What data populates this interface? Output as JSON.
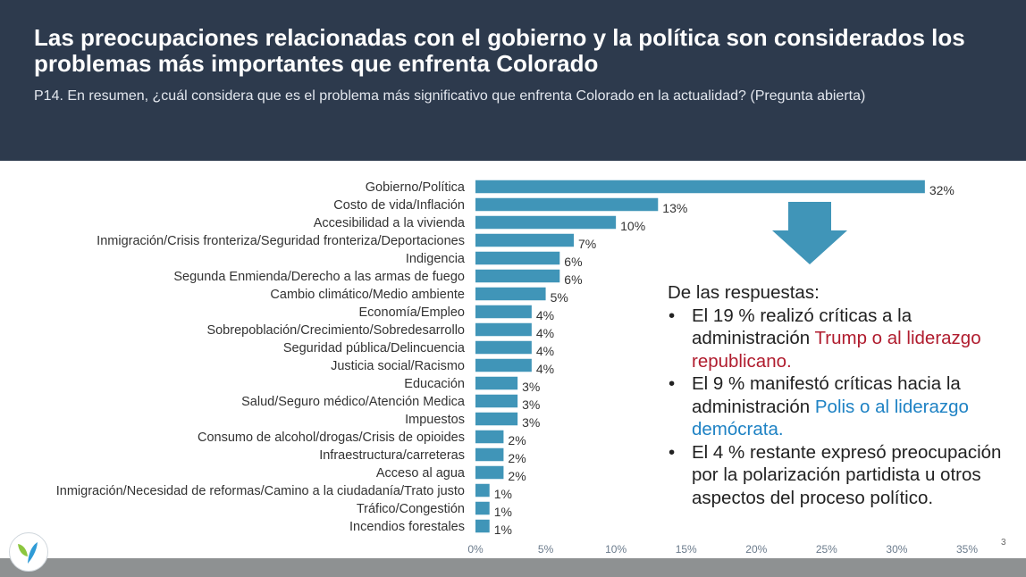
{
  "header": {
    "title": "Las preocupaciones relacionadas con el gobierno y la política son considerados los problemas más importantes que enfrenta Colorado",
    "subtitle": "P14. En resumen, ¿cuál considera que es el problema más significativo que enfrenta Colorado en la actualidad? (Pregunta abierta)"
  },
  "chart_data": {
    "type": "bar",
    "orientation": "horizontal",
    "categories": [
      "Gobierno/Política",
      "Costo de vida/Inflación",
      "Accesibilidad a la vivienda",
      "Inmigración/Crisis fronteriza/Seguridad fronteriza/Deportaciones",
      "Indigencia",
      "Segunda Enmienda/Derecho a las armas de fuego",
      "Cambio climático/Medio ambiente",
      "Economía/Empleo",
      "Sobrepoblación/Crecimiento/Sobredesarrollo",
      "Seguridad pública/Delincuencia",
      "Justicia social/Racismo",
      "Educación",
      "Salud/Seguro médico/Atención Medica",
      "Impuestos",
      "Consumo de alcohol/drogas/Crisis de opioides",
      "Infraestructura/carreteras",
      "Acceso al agua",
      "Inmigración/Necesidad de reformas/Camino a la ciudadanía/Trato justo",
      "Tráfico/Congestión",
      "Incendios forestales"
    ],
    "values": [
      32,
      13,
      10,
      7,
      6,
      6,
      5,
      4,
      4,
      4,
      4,
      3,
      3,
      3,
      2,
      2,
      2,
      1,
      1,
      1
    ],
    "data_labels": [
      "32%",
      "13%",
      "10%",
      "7%",
      "6%",
      "6%",
      "5%",
      "4%",
      "4%",
      "4%",
      "4%",
      "3%",
      "3%",
      "3%",
      "2%",
      "2%",
      "2%",
      "1%",
      "1%",
      "1%"
    ],
    "xlim": [
      0,
      35
    ],
    "xticks": [
      "0%",
      "5%",
      "10%",
      "15%",
      "20%",
      "25%",
      "30%",
      "35%"
    ],
    "grid": false,
    "bar_color": "#4095b8"
  },
  "callout": {
    "heading": "De las respuestas:",
    "bullets": [
      {
        "before": "El 19 % realizó críticas a la administración ",
        "highlight": "Trump o al liderazgo republicano.",
        "highlight_color": "#b01c2e"
      },
      {
        "before": "El 9 % manifestó críticas hacia la administración ",
        "highlight": "Polis o al liderazgo demócrata.",
        "highlight_color": "#1e82c4"
      },
      {
        "before": "El 4 % restante expresó preocupación por la polarización partidista u otros aspectos del proceso político.",
        "highlight": "",
        "highlight_color": ""
      }
    ],
    "arrow_color": "#4095b8"
  },
  "footer": {
    "page_number": "3"
  }
}
